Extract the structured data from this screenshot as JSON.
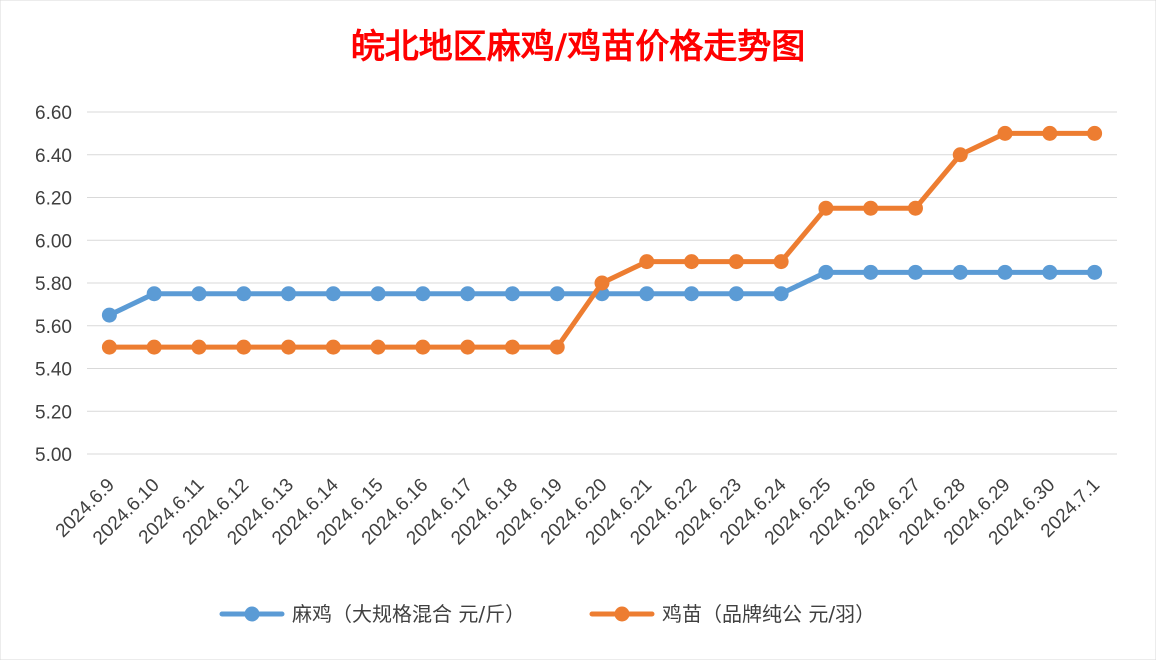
{
  "chart_data": {
    "type": "line",
    "title": "皖北地区麻鸡/鸡苗价格走势图",
    "ylim": [
      5.0,
      6.6
    ],
    "yticks": [
      "5.00",
      "5.20",
      "5.40",
      "5.60",
      "5.80",
      "6.00",
      "6.20",
      "6.40",
      "6.60"
    ],
    "categories": [
      "2024.6.9",
      "2024.6.10",
      "2024.6.11",
      "2024.6.12",
      "2024.6.13",
      "2024.6.14",
      "2024.6.15",
      "2024.6.16",
      "2024.6.17",
      "2024.6.18",
      "2024.6.19",
      "2024.6.20",
      "2024.6.21",
      "2024.6.22",
      "2024.6.23",
      "2024.6.24",
      "2024.6.25",
      "2024.6.26",
      "2024.6.27",
      "2024.6.28",
      "2024.6.29",
      "2024.6.30",
      "2024.7.1"
    ],
    "series": [
      {
        "name": "麻鸡（大规格混合 元/斤）",
        "color": "#5b9bd5",
        "values": [
          5.65,
          5.75,
          5.75,
          5.75,
          5.75,
          5.75,
          5.75,
          5.75,
          5.75,
          5.75,
          5.75,
          5.75,
          5.75,
          5.75,
          5.75,
          5.75,
          5.85,
          5.85,
          5.85,
          5.85,
          5.85,
          5.85,
          5.85
        ]
      },
      {
        "name": "鸡苗（品牌纯公 元/羽）",
        "color": "#ed7d31",
        "values": [
          5.5,
          5.5,
          5.5,
          5.5,
          5.5,
          5.5,
          5.5,
          5.5,
          5.5,
          5.5,
          5.5,
          5.8,
          5.9,
          5.9,
          5.9,
          5.9,
          6.15,
          6.15,
          6.15,
          6.4,
          6.5,
          6.5,
          6.5
        ]
      }
    ],
    "grid": true,
    "legend": "bottom"
  }
}
